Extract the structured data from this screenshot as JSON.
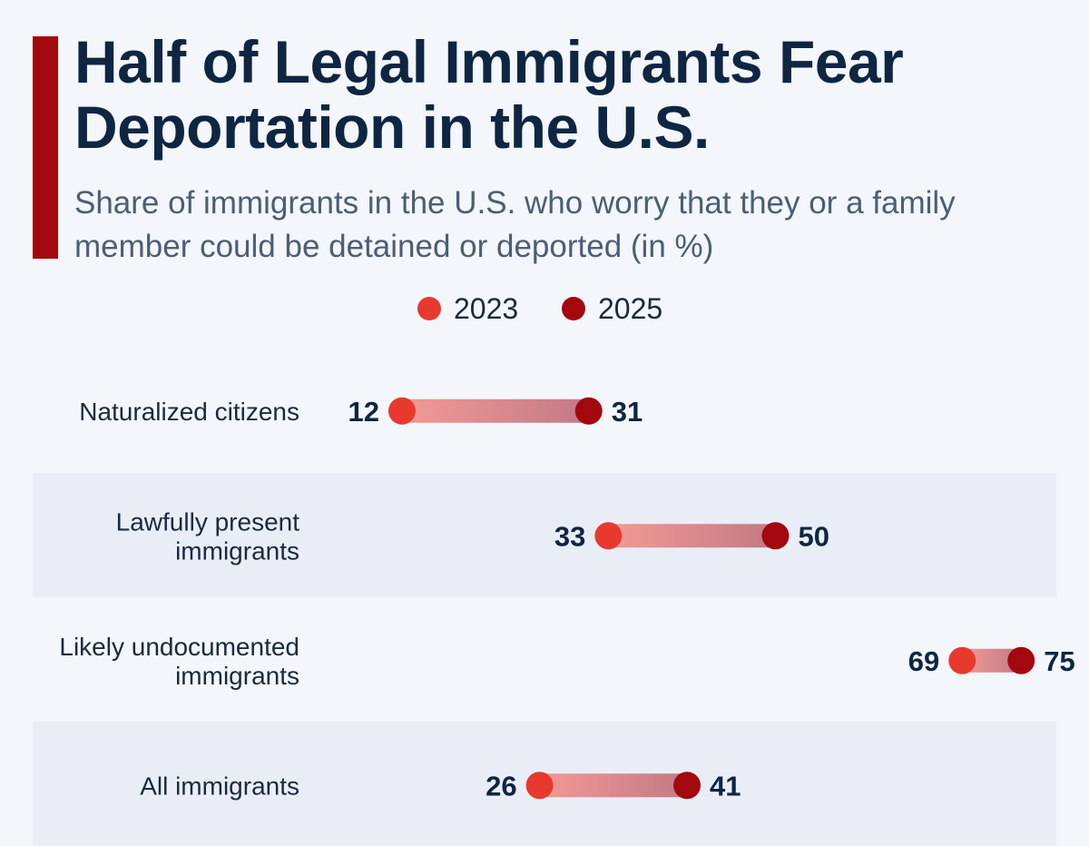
{
  "header": {
    "title": "Half of Legal Immigrants Fear Deportation in the U.S.",
    "subtitle": "Share of immigrants in the U.S. who worry that they or a family member could be detained or deported (in %)"
  },
  "colors": {
    "accent": "#a3080f",
    "series_2023": "#e8392e",
    "series_2025": "#a3080f",
    "title": "#0f2542",
    "band": "#e9eef6"
  },
  "chart_data": {
    "type": "dumbbell",
    "title": "Half of Legal Immigrants Fear Deportation in the U.S.",
    "subtitle": "Share of immigrants in the U.S. who worry that they or a family member could be detained or deported (in %)",
    "legend_position": "top-center",
    "grid": false,
    "categories": [
      [
        "Naturalized citizens"
      ],
      [
        "Lawfully present",
        "immigrants"
      ],
      [
        "Likely undocumented",
        "immigrants"
      ],
      [
        "All immigrants"
      ]
    ],
    "series": [
      {
        "name": "2023",
        "values": [
          12,
          33,
          69,
          26
        ]
      },
      {
        "name": "2025",
        "values": [
          31,
          50,
          75,
          41
        ]
      }
    ],
    "xlim": [
      0,
      75
    ]
  }
}
